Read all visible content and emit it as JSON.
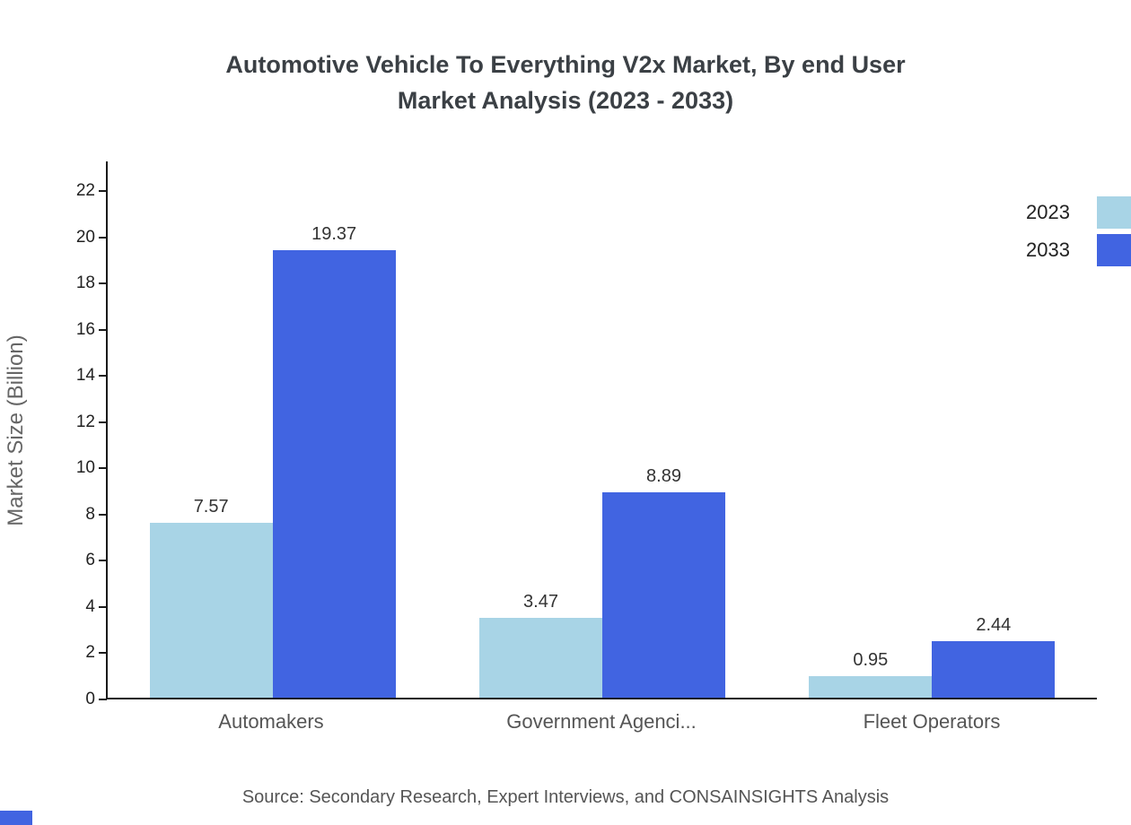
{
  "title": {
    "line1": "Automotive Vehicle To Everything V2x Market, By end User",
    "line2": "Market Analysis (2023 - 2033)"
  },
  "chart_data": {
    "type": "bar",
    "categories": [
      "Automakers",
      "Government Agenci...",
      "Fleet Operators"
    ],
    "series": [
      {
        "name": "2023",
        "color": "#a8d4e6",
        "values": [
          7.57,
          3.47,
          0.95
        ]
      },
      {
        "name": "2033",
        "color": "#4164e1",
        "values": [
          19.37,
          8.89,
          2.44
        ]
      }
    ],
    "title": "Automotive Vehicle To Everything V2x Market, By end User Market Analysis (2023 - 2033)",
    "xlabel": "",
    "ylabel": "Market Size (Billion)",
    "ylim": [
      0,
      22
    ],
    "ytick_step": 2,
    "grid": false,
    "legend_position": "top-right",
    "value_labels": true
  },
  "footer": {
    "source": "Source: Secondary Research, Expert Interviews, and CONSAINSIGHTS Analysis"
  },
  "colors": {
    "accent_blue": "#4164e1",
    "light_blue": "#a8d4e6",
    "axis": "#1a1a1a"
  }
}
